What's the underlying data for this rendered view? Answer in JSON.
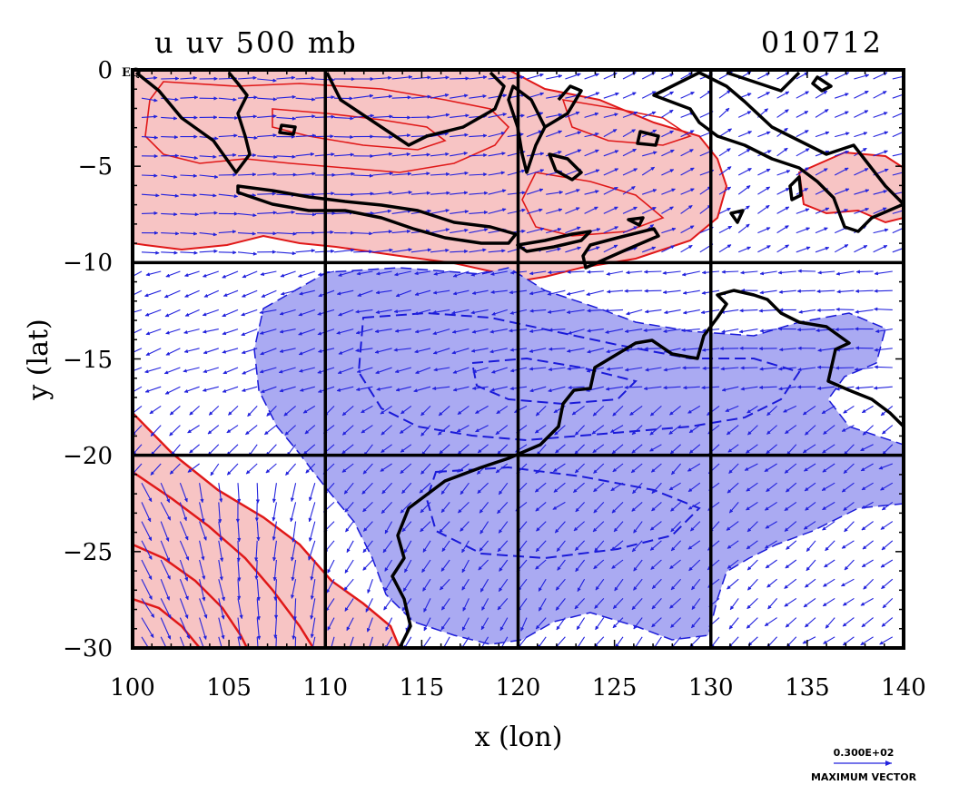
{
  "title_left": "u uv 500 mb",
  "title_right": "010712",
  "eq_label": "EQ",
  "x_axis": {
    "label": "x (lon)",
    "ticks": [
      "100",
      "105",
      "110",
      "115",
      "120",
      "125",
      "130",
      "135",
      "140"
    ]
  },
  "y_axis": {
    "label": "y (lat)",
    "ticks": [
      "0",
      "−5",
      "−10",
      "−15",
      "−20",
      "−25",
      "−30"
    ]
  },
  "legend": {
    "value": "0.300E+02",
    "caption": "MAXIMUM VECTOR"
  },
  "colors": {
    "positive_fill": "#f7c4c4",
    "positive_line": "#e01818",
    "negative_fill": "#aaaaf2",
    "negative_line": "#1a1ad8",
    "vector": "#2222dd",
    "coast": "#000000"
  },
  "map_extent": {
    "lon": [
      100,
      140
    ],
    "lat": [
      -30,
      0
    ]
  },
  "grid_lines": {
    "lon": [
      110,
      120,
      130
    ],
    "lat": [
      -10,
      -20
    ]
  }
}
